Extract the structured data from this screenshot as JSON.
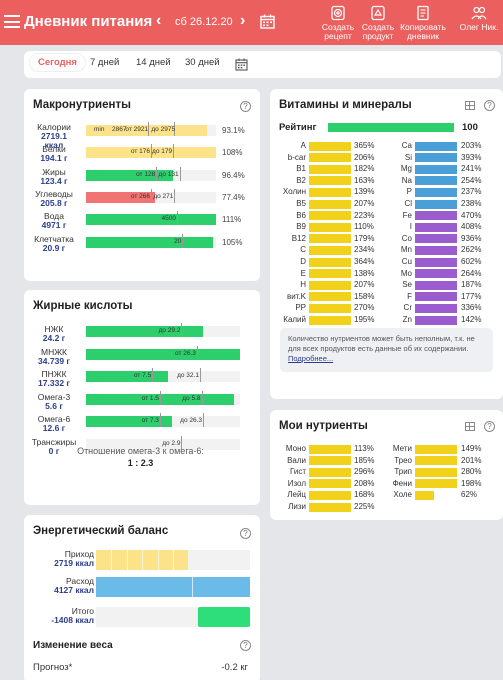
{
  "header": {
    "title": "Дневник питания",
    "prev": "‹",
    "next": "›",
    "date": "сб 26.12.20",
    "actions": [
      {
        "label_1": "Создать",
        "label_2": "рецепт",
        "icon": "create-recipe-icon"
      },
      {
        "label_1": "Создать",
        "label_2": "продукт",
        "icon": "create-product-icon"
      },
      {
        "label_1": "Копировать",
        "label_2": "дневник",
        "icon": "copy-diary-icon"
      },
      {
        "label_1": "Олег Ник.",
        "label_2": "",
        "icon": "users-icon"
      }
    ]
  },
  "period_tabs": [
    "Сегодня",
    "7 дней",
    "14 дней",
    "30 дней"
  ],
  "active_tab": "Сегодня",
  "macros": {
    "title": "Макронутриенты",
    "rows": [
      {
        "name": "Калории",
        "value": "2719.1",
        "unit": "ккал",
        "fraction": 0.93,
        "color": "#fce38a",
        "min_label": "min",
        "min_value": "2867",
        "mark1": "от 2921",
        "mark2": "до 2975",
        "pct": "93.1%"
      },
      {
        "name": "Белки",
        "value": "194.1 г",
        "unit": "",
        "fraction": 1.0,
        "color": "#fce38a",
        "min_label": "",
        "min_value": "",
        "mark1": "от 176",
        "mark2": "до 179",
        "pct": "108%"
      },
      {
        "name": "Жиры",
        "value": "123.4 г",
        "unit": "",
        "fraction": 0.67,
        "color": "#2dce6c",
        "min_label": "",
        "min_value": "",
        "mark1": "от 128",
        "mark2": "до 131",
        "pct": "96.4%"
      },
      {
        "name": "Углеводы",
        "value": "205.8 г",
        "unit": "",
        "fraction": 0.53,
        "color": "#f07474",
        "min_label": "",
        "min_value": "",
        "mark1": "от 266",
        "mark2": "до 271",
        "pct": "77.4%"
      },
      {
        "name": "Вода",
        "value": "4971 г",
        "unit": "",
        "fraction": 1.0,
        "color": "#2dce6c",
        "min_label": "",
        "min_value": "",
        "mark1": "4500",
        "mark2": "",
        "pct": "111%"
      },
      {
        "name": "Клетчатка",
        "value": "20.9 г",
        "unit": "",
        "fraction": 0.98,
        "color": "#2dce6c",
        "min_label": "",
        "min_value": "",
        "mark1": "20",
        "mark2": "",
        "pct": "105%"
      }
    ]
  },
  "fatty": {
    "title": "Жирные кислоты",
    "rows": [
      {
        "name": "НЖК",
        "value": "24.2 г",
        "fraction": 0.76,
        "color": "#2dce6c",
        "mark1": "",
        "mark2": "до 29.2"
      },
      {
        "name": "МНЖК",
        "value": "34.739 г",
        "fraction": 1.0,
        "color": "#2dce6c",
        "mark1": "от 26.3",
        "mark2": ""
      },
      {
        "name": "ПНЖК",
        "value": "17.332 г",
        "fraction": 0.53,
        "color": "#2dce6c",
        "mark1": "от 7.5",
        "mark2": "до 32.1"
      },
      {
        "name": "Омега-3",
        "value": "5.6 г",
        "fraction": 0.96,
        "color": "#2dce6c",
        "mark1": "от 1.5",
        "mark2": "до 5.8"
      },
      {
        "name": "Омега-6",
        "value": "12.6 г",
        "fraction": 0.56,
        "color": "#2dce6c",
        "mark1": "от 7.3",
        "mark2": "до 26.3"
      },
      {
        "name": "Трансжиры",
        "value": "0 г",
        "fraction": 0.0,
        "color": "#2dce6c",
        "mark1": "",
        "mark2": "до 2.9"
      }
    ],
    "ratio_label": "Отношение омега-3 к омега-6:",
    "ratio_value": "1 : 2.3"
  },
  "energy": {
    "title": "Энергетический баланс",
    "rows": [
      {
        "name": "Приход",
        "value": "2719 ккал",
        "fraction": 0.6,
        "color": "#fce38a"
      },
      {
        "name": "Расход",
        "value": "4127 ккал",
        "fraction": 1.0,
        "color": "#6bbbe8"
      },
      {
        "name": "Итого",
        "value": "-1408 ккал",
        "fraction": 0.34,
        "color": "#2dde7a"
      }
    ]
  },
  "weight": {
    "title": "Изменение веса",
    "forecast_label": "Прогноз*",
    "forecast_value": "-0.2 кг"
  },
  "vitamins": {
    "title": "Витамины и минералы",
    "rating_label": "Рейтинг",
    "rating_value": "100",
    "left": [
      {
        "name": "A",
        "pct": "365%",
        "fraction": 1.0
      },
      {
        "name": "b-car",
        "pct": "206%",
        "fraction": 1.0
      },
      {
        "name": "B1",
        "pct": "182%",
        "fraction": 1.0
      },
      {
        "name": "B2",
        "pct": "163%",
        "fraction": 1.0
      },
      {
        "name": "Холин",
        "pct": "139%",
        "fraction": 1.0
      },
      {
        "name": "B5",
        "pct": "207%",
        "fraction": 1.0
      },
      {
        "name": "B6",
        "pct": "223%",
        "fraction": 1.0
      },
      {
        "name": "B9",
        "pct": "110%",
        "fraction": 1.0
      },
      {
        "name": "B12",
        "pct": "179%",
        "fraction": 1.0
      },
      {
        "name": "C",
        "pct": "234%",
        "fraction": 1.0
      },
      {
        "name": "D",
        "pct": "364%",
        "fraction": 1.0
      },
      {
        "name": "E",
        "pct": "138%",
        "fraction": 1.0
      },
      {
        "name": "H",
        "pct": "207%",
        "fraction": 1.0
      },
      {
        "name": "вит.K",
        "pct": "158%",
        "fraction": 1.0
      },
      {
        "name": "PP",
        "pct": "270%",
        "fraction": 1.0
      },
      {
        "name": "Калий",
        "pct": "195%",
        "fraction": 1.0
      }
    ],
    "right": [
      {
        "name": "Ca",
        "pct": "203%",
        "color": "#4a9fd8"
      },
      {
        "name": "Si",
        "pct": "393%",
        "color": "#4a9fd8"
      },
      {
        "name": "Mg",
        "pct": "241%",
        "color": "#4a9fd8"
      },
      {
        "name": "Na",
        "pct": "254%",
        "color": "#4a9fd8"
      },
      {
        "name": "P",
        "pct": "237%",
        "color": "#4a9fd8"
      },
      {
        "name": "Cl",
        "pct": "238%",
        "color": "#4a9fd8"
      },
      {
        "name": "Fe",
        "pct": "470%",
        "color": "#9b5cd0"
      },
      {
        "name": "I",
        "pct": "408%",
        "color": "#9b5cd0"
      },
      {
        "name": "Co",
        "pct": "936%",
        "color": "#9b5cd0"
      },
      {
        "name": "Mn",
        "pct": "262%",
        "color": "#9b5cd0"
      },
      {
        "name": "Cu",
        "pct": "602%",
        "color": "#9b5cd0"
      },
      {
        "name": "Mo",
        "pct": "264%",
        "color": "#9b5cd0"
      },
      {
        "name": "Se",
        "pct": "187%",
        "color": "#9b5cd0"
      },
      {
        "name": "F",
        "pct": "177%",
        "color": "#9b5cd0"
      },
      {
        "name": "Cr",
        "pct": "336%",
        "color": "#9b5cd0"
      },
      {
        "name": "Zn",
        "pct": "142%",
        "color": "#9b5cd0"
      }
    ],
    "note": "Количество нутриентов может быть неполным, т.к. не для всех продуктов есть данные об их содержании.",
    "note_link": "Подробнее..."
  },
  "my_nutrients": {
    "title": "Мои нутриенты",
    "left": [
      {
        "name": "Моно",
        "pct": "113%",
        "fraction": 1.0
      },
      {
        "name": "Вали",
        "pct": "185%",
        "fraction": 1.0
      },
      {
        "name": "Гист",
        "pct": "296%",
        "fraction": 1.0
      },
      {
        "name": "Изол",
        "pct": "208%",
        "fraction": 1.0
      },
      {
        "name": "Лейц",
        "pct": "168%",
        "fraction": 1.0
      },
      {
        "name": "Лизи",
        "pct": "225%",
        "fraction": 1.0
      }
    ],
    "right": [
      {
        "name": "Мети",
        "pct": "149%",
        "fraction": 1.0
      },
      {
        "name": "Трео",
        "pct": "201%",
        "fraction": 1.0
      },
      {
        "name": "Трип",
        "pct": "280%",
        "fraction": 1.0
      },
      {
        "name": "Фени",
        "pct": "198%",
        "fraction": 1.0
      },
      {
        "name": "Холе",
        "pct": "62%",
        "fraction": 0.45
      }
    ]
  },
  "colors": {
    "header": "#ec5f5f",
    "vitamin_yellow": "#f2d11b",
    "rating_green": "#2dce6c"
  }
}
